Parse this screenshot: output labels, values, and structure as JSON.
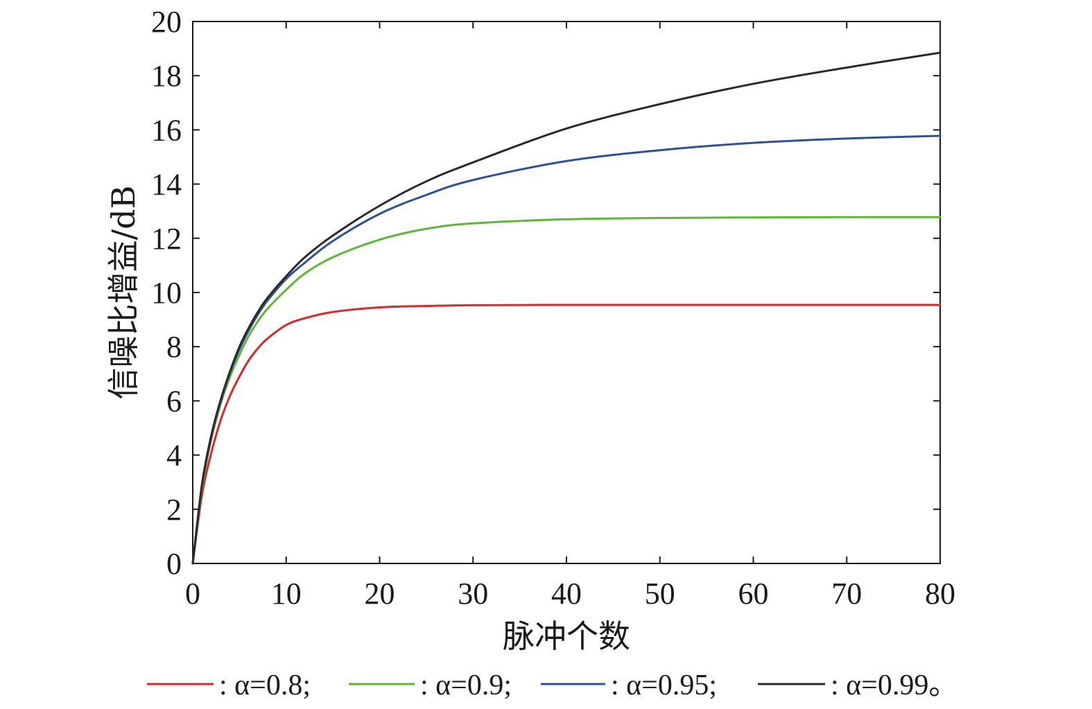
{
  "chart_data": {
    "type": "line",
    "xlabel": "脉冲个数",
    "ylabel": "信噪比增益/dB",
    "xlim": [
      0,
      80
    ],
    "ylim": [
      0,
      20
    ],
    "xticks": [
      0,
      10,
      20,
      30,
      40,
      50,
      60,
      70,
      80
    ],
    "yticks": [
      0,
      2,
      4,
      6,
      8,
      10,
      12,
      14,
      16,
      18,
      20
    ],
    "x_tick_labels": [
      "0",
      "10",
      "20",
      "30",
      "40",
      "50",
      "60",
      "70",
      "80"
    ],
    "y_tick_labels": [
      "0",
      "2",
      "4",
      "6",
      "8",
      "10",
      "12",
      "14",
      "16",
      "18",
      "20"
    ],
    "grid": false,
    "legend_placement": "bottom",
    "series": [
      {
        "name": ": α=0.8;",
        "color": "#e0242b",
        "x": [
          0,
          1,
          2,
          3,
          4,
          5,
          6,
          7,
          8,
          10,
          12,
          15,
          20,
          25,
          30,
          40,
          50,
          60,
          70,
          80
        ],
        "y": [
          0,
          2.55,
          4.1,
          5.3,
          6.2,
          6.9,
          7.5,
          7.95,
          8.3,
          8.8,
          9.05,
          9.28,
          9.45,
          9.5,
          9.53,
          9.54,
          9.54,
          9.54,
          9.54,
          9.54
        ]
      },
      {
        "name": ": α=0.9;",
        "color": "#5ab832",
        "x": [
          0,
          1,
          2,
          3,
          4,
          5,
          6,
          7,
          8,
          10,
          12,
          15,
          20,
          25,
          30,
          40,
          50,
          60,
          70,
          80
        ],
        "y": [
          0,
          2.8,
          4.6,
          5.9,
          6.9,
          7.7,
          8.4,
          8.95,
          9.4,
          10.1,
          10.7,
          11.3,
          11.95,
          12.35,
          12.55,
          12.7,
          12.75,
          12.77,
          12.78,
          12.78
        ]
      },
      {
        "name": ": α=0.95;",
        "color": "#2e4f9c",
        "x": [
          0,
          1,
          2,
          3,
          4,
          5,
          6,
          7,
          8,
          10,
          12,
          15,
          20,
          25,
          30,
          40,
          50,
          60,
          70,
          80
        ],
        "y": [
          0,
          2.9,
          4.7,
          6.0,
          7.05,
          7.9,
          8.6,
          9.2,
          9.7,
          10.5,
          11.1,
          11.9,
          12.9,
          13.6,
          14.15,
          14.85,
          15.25,
          15.52,
          15.68,
          15.78
        ]
      },
      {
        "name": ": α=0.99。",
        "color": "#2a2a2a",
        "x": [
          0,
          1,
          2,
          3,
          4,
          5,
          6,
          7,
          8,
          10,
          12,
          15,
          20,
          25,
          30,
          40,
          50,
          60,
          70,
          80
        ],
        "y": [
          0,
          2.95,
          4.75,
          6.05,
          7.1,
          8.0,
          8.7,
          9.3,
          9.8,
          10.6,
          11.3,
          12.1,
          13.2,
          14.1,
          14.8,
          16.05,
          16.95,
          17.7,
          18.3,
          18.85
        ]
      }
    ]
  }
}
